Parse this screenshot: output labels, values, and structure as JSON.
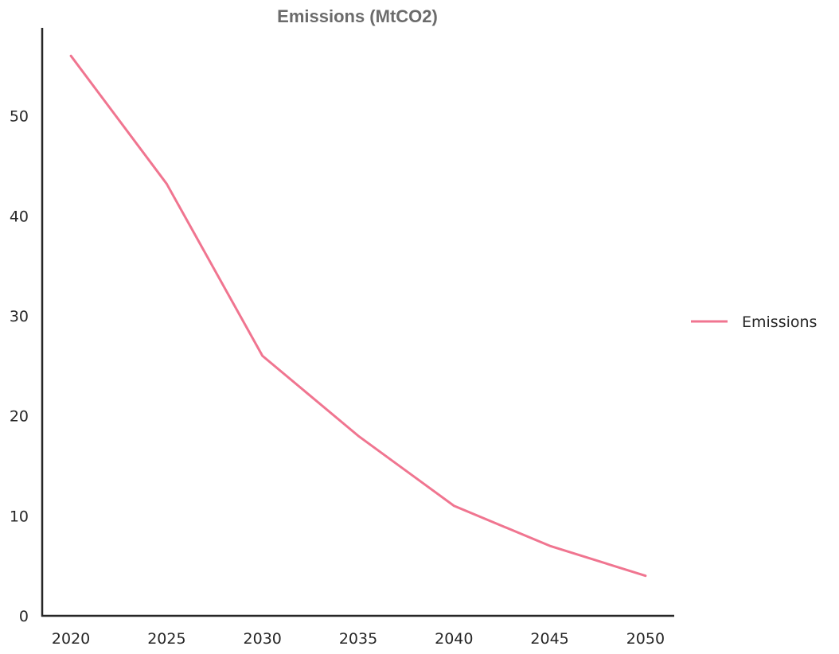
{
  "chart_data": {
    "type": "line",
    "title": "Emissions (MtCO2)",
    "xlabel": "",
    "ylabel": "",
    "x": [
      2020,
      2025,
      2030,
      2035,
      2040,
      2045,
      2050
    ],
    "series": [
      {
        "name": "Emissions",
        "color": "#f07590",
        "values": [
          56,
          43.2,
          26,
          18,
          11,
          7,
          4
        ]
      }
    ],
    "xticks": [
      2020,
      2025,
      2030,
      2035,
      2040,
      2045,
      2050
    ],
    "yticks": [
      0,
      10,
      20,
      30,
      40,
      50
    ],
    "xlim": [
      2018.5,
      2051.5
    ],
    "ylim": [
      0,
      58.8
    ],
    "grid": false,
    "legend_position": "right-center"
  }
}
